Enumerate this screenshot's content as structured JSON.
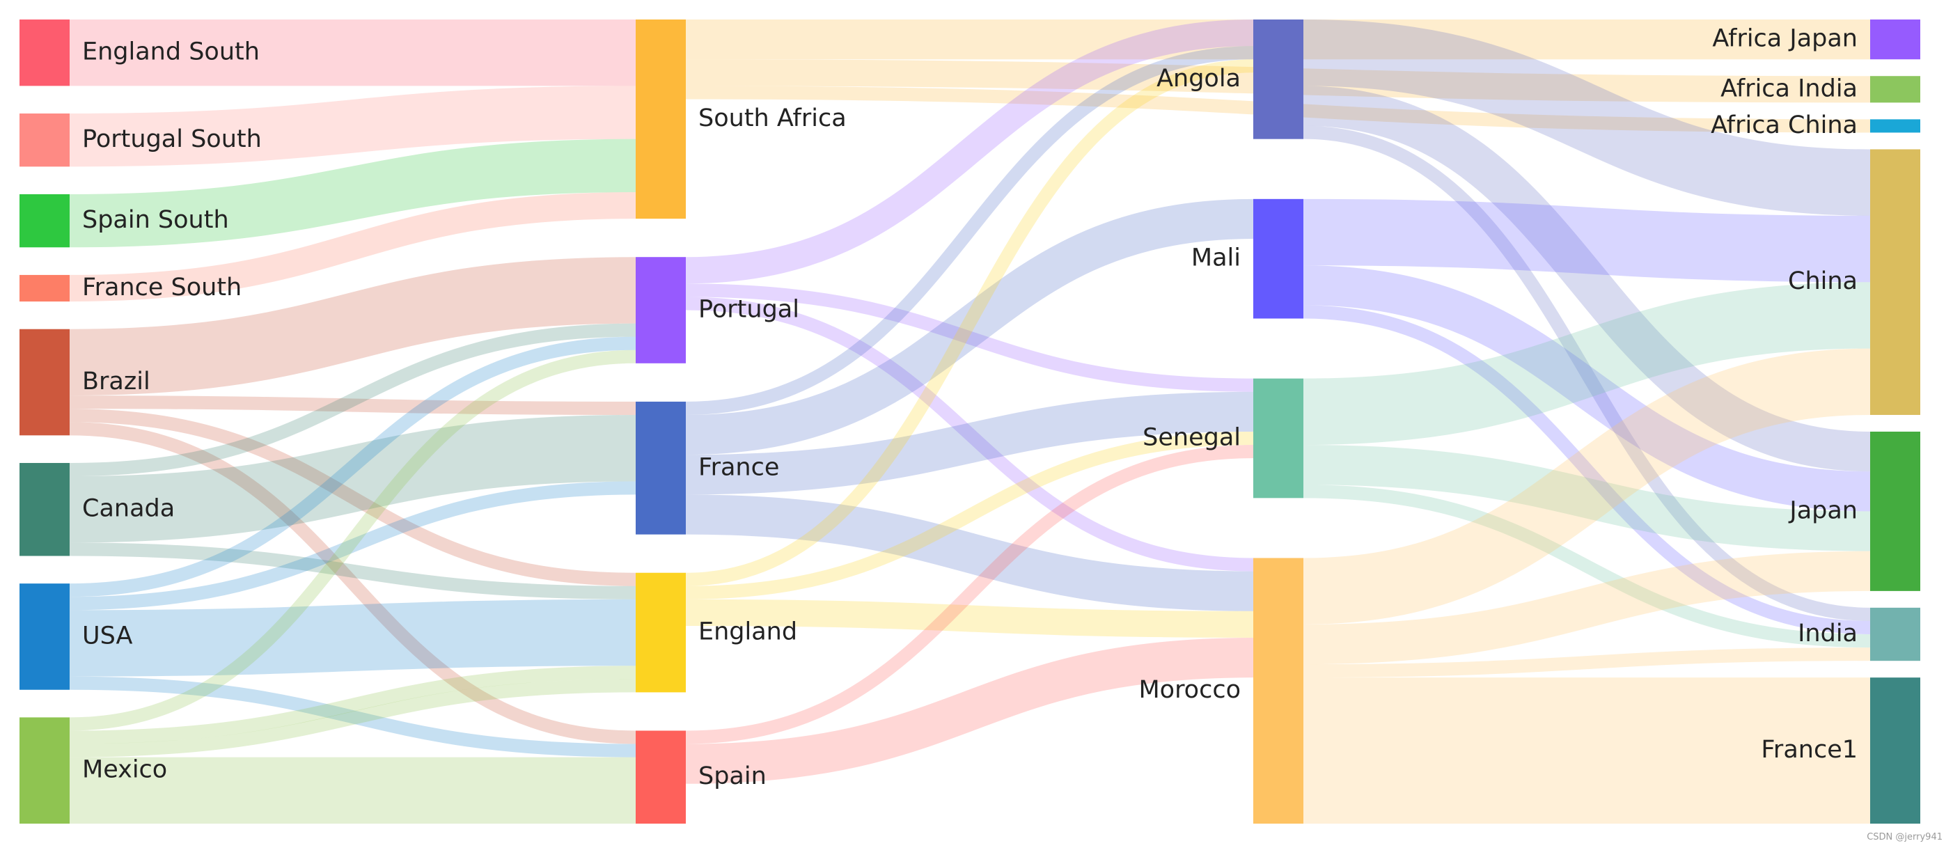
{
  "watermark": "CSDN @jerry941",
  "nodes": [
    {
      "id": "England South",
      "color": "#fd5c6e",
      "column": 0
    },
    {
      "id": "Portugal South",
      "color": "#fe8a84",
      "column": 0
    },
    {
      "id": "Spain South",
      "color": "#2ec840",
      "column": 0
    },
    {
      "id": "France South",
      "color": "#fd7e66",
      "column": 0
    },
    {
      "id": "Brazil",
      "color": "#cd583d",
      "column": 0
    },
    {
      "id": "Canada",
      "color": "#3e8573",
      "column": 0
    },
    {
      "id": "USA",
      "color": "#1c82cc",
      "column": 0
    },
    {
      "id": "Mexico",
      "color": "#8fc451",
      "column": 0
    },
    {
      "id": "South Africa",
      "color": "#fdb93b",
      "column": 1
    },
    {
      "id": "Portugal",
      "color": "#975afe",
      "column": 1
    },
    {
      "id": "France",
      "color": "#4a6dc6",
      "column": 1
    },
    {
      "id": "England",
      "color": "#fcd321",
      "column": 1
    },
    {
      "id": "Spain",
      "color": "#fe615b",
      "column": 1
    },
    {
      "id": "Angola",
      "color": "#646ec5",
      "column": 2
    },
    {
      "id": "Mali",
      "color": "#645afe",
      "column": 2
    },
    {
      "id": "Senegal",
      "color": "#6ec3a5",
      "column": 2
    },
    {
      "id": "Morocco",
      "color": "#fec363",
      "column": 2
    },
    {
      "id": "Africa Japan",
      "color": "#965bfe",
      "column": 3
    },
    {
      "id": "Africa India",
      "color": "#8cc65e",
      "column": 3
    },
    {
      "id": "Africa China",
      "color": "#1aa7d7",
      "column": 3
    },
    {
      "id": "China",
      "color": "#dabd5e",
      "column": 3
    },
    {
      "id": "Japan",
      "color": "#44ac3f",
      "column": 3
    },
    {
      "id": "India",
      "color": "#72b2ae",
      "column": 3
    },
    {
      "id": "France1",
      "color": "#3c8783",
      "column": 3
    }
  ],
  "links": [
    {
      "source": "England South",
      "target": "South Africa",
      "value": 5
    },
    {
      "source": "Portugal South",
      "target": "South Africa",
      "value": 4
    },
    {
      "source": "Spain South",
      "target": "South Africa",
      "value": 4
    },
    {
      "source": "France South",
      "target": "South Africa",
      "value": 2
    },
    {
      "source": "Brazil",
      "target": "Portugal",
      "value": 5
    },
    {
      "source": "Brazil",
      "target": "France",
      "value": 1
    },
    {
      "source": "Brazil",
      "target": "England",
      "value": 1
    },
    {
      "source": "Brazil",
      "target": "Spain",
      "value": 1
    },
    {
      "source": "Canada",
      "target": "Portugal",
      "value": 1
    },
    {
      "source": "Canada",
      "target": "France",
      "value": 5
    },
    {
      "source": "Canada",
      "target": "England",
      "value": 1
    },
    {
      "source": "USA",
      "target": "Portugal",
      "value": 1
    },
    {
      "source": "USA",
      "target": "France",
      "value": 1
    },
    {
      "source": "USA",
      "target": "England",
      "value": 5
    },
    {
      "source": "USA",
      "target": "Spain",
      "value": 1
    },
    {
      "source": "Mexico",
      "target": "Portugal",
      "value": 1
    },
    {
      "source": "Mexico",
      "target": "England",
      "value": 1
    },
    {
      "source": "Mexico",
      "target": "Spain",
      "value": 5
    },
    {
      "source": "Mexico",
      "target": "England",
      "value": 1
    },
    {
      "source": "South Africa",
      "target": "Africa Japan",
      "value": 3
    },
    {
      "source": "South Africa",
      "target": "Africa India",
      "value": 2
    },
    {
      "source": "South Africa",
      "target": "Africa China",
      "value": 1
    },
    {
      "source": "Portugal",
      "target": "Angola",
      "value": 2
    },
    {
      "source": "Portugal",
      "target": "Senegal",
      "value": 1
    },
    {
      "source": "Portugal",
      "target": "Morocco",
      "value": 1
    },
    {
      "source": "France",
      "target": "Angola",
      "value": 1
    },
    {
      "source": "France",
      "target": "Mali",
      "value": 3
    },
    {
      "source": "France",
      "target": "Senegal",
      "value": 3
    },
    {
      "source": "France",
      "target": "Morocco",
      "value": 3
    },
    {
      "source": "England",
      "target": "Angola",
      "value": 1
    },
    {
      "source": "England",
      "target": "Senegal",
      "value": 1
    },
    {
      "source": "England",
      "target": "Morocco",
      "value": 2
    },
    {
      "source": "Spain",
      "target": "Senegal",
      "value": 1
    },
    {
      "source": "Spain",
      "target": "Morocco",
      "value": 3
    },
    {
      "source": "Angola",
      "target": "China",
      "value": 5
    },
    {
      "source": "Angola",
      "target": "Japan",
      "value": 3
    },
    {
      "source": "Angola",
      "target": "India",
      "value": 1
    },
    {
      "source": "Mali",
      "target": "China",
      "value": 5
    },
    {
      "source": "Mali",
      "target": "Japan",
      "value": 3
    },
    {
      "source": "Mali",
      "target": "India",
      "value": 1
    },
    {
      "source": "Senegal",
      "target": "China",
      "value": 5
    },
    {
      "source": "Senegal",
      "target": "Japan",
      "value": 3
    },
    {
      "source": "Senegal",
      "target": "India",
      "value": 1
    },
    {
      "source": "Morocco",
      "target": "China",
      "value": 5
    },
    {
      "source": "Morocco",
      "target": "Japan",
      "value": 3
    },
    {
      "source": "Morocco",
      "target": "India",
      "value": 1
    },
    {
      "source": "Morocco",
      "target": "France1",
      "value": 11
    }
  ]
}
